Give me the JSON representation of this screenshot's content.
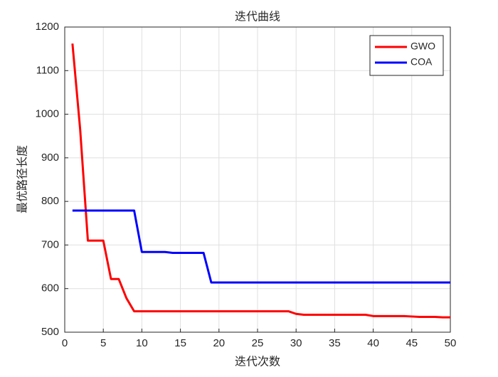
{
  "chart_data": {
    "type": "line",
    "title": "迭代曲线",
    "x_label": "迭代次数",
    "y_label": "最优路径长度",
    "x": [
      1,
      2,
      3,
      4,
      5,
      6,
      7,
      8,
      9,
      10,
      11,
      12,
      13,
      14,
      15,
      16,
      17,
      18,
      19,
      20,
      21,
      22,
      23,
      24,
      25,
      26,
      27,
      28,
      29,
      30,
      31,
      32,
      33,
      34,
      35,
      36,
      37,
      38,
      39,
      40,
      41,
      42,
      43,
      44,
      45,
      46,
      47,
      48,
      49,
      50
    ],
    "series": [
      {
        "name": "GWO",
        "color": "#ff0000",
        "values": [
          1162,
          965,
          710,
          710,
          710,
          622,
          622,
          578,
          548,
          548,
          548,
          548,
          548,
          548,
          548,
          548,
          548,
          548,
          548,
          548,
          548,
          548,
          548,
          548,
          548,
          548,
          548,
          548,
          548,
          542,
          540,
          540,
          540,
          540,
          540,
          540,
          540,
          540,
          540,
          537,
          537,
          537,
          537,
          537,
          536,
          535,
          535,
          535,
          534,
          534
        ]
      },
      {
        "name": "COA",
        "color": "#0000ff",
        "values": [
          779,
          779,
          779,
          779,
          779,
          779,
          779,
          779,
          779,
          684,
          684,
          684,
          684,
          682,
          682,
          682,
          682,
          682,
          614,
          614,
          614,
          614,
          614,
          614,
          614,
          614,
          614,
          614,
          614,
          614,
          614,
          614,
          614,
          614,
          614,
          614,
          614,
          614,
          614,
          614,
          614,
          614,
          614,
          614,
          614,
          614,
          614,
          614,
          614,
          614
        ]
      }
    ],
    "xlim": [
      0,
      50
    ],
    "ylim": [
      500,
      1200
    ],
    "xticks": [
      0,
      5,
      10,
      15,
      20,
      25,
      30,
      35,
      40,
      45,
      50
    ],
    "yticks": [
      500,
      600,
      700,
      800,
      900,
      1000,
      1100,
      1200
    ],
    "grid": true,
    "legend": "northeast"
  }
}
